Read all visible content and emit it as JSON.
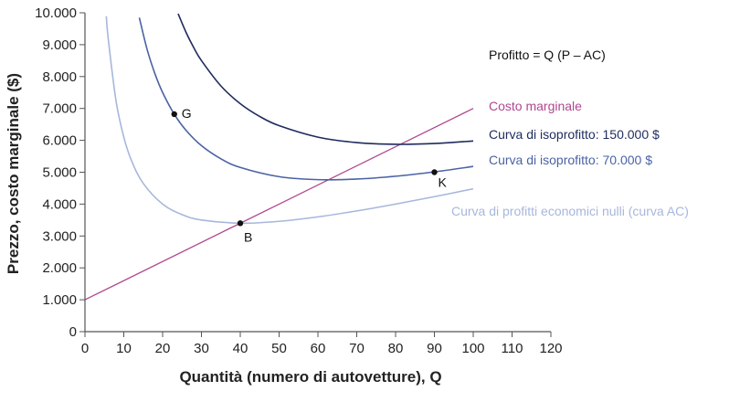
{
  "chart_data": {
    "type": "line",
    "xlabel": "Quantità (numero di autovetture), Q",
    "ylabel": "Prezzo, costo marginale ($)",
    "xlim": [
      0,
      120
    ],
    "ylim": [
      0,
      10000
    ],
    "xticks": [
      "0",
      "10",
      "20",
      "30",
      "40",
      "50",
      "60",
      "70",
      "80",
      "90",
      "100",
      "110",
      "120"
    ],
    "yticks": [
      "0",
      "1.000",
      "2.000",
      "3.000",
      "4.000",
      "5.000",
      "6.000",
      "7.000",
      "8.000",
      "9.000",
      "10.000"
    ],
    "grid": false,
    "annotation": "Profitto = Q (P – AC)",
    "series": [
      {
        "name": "Costo marginale",
        "color": "#b0478f",
        "points": [
          [
            0,
            1000
          ],
          [
            100,
            7000
          ]
        ]
      },
      {
        "name": "Curva di isoprofitto: 150.000 $",
        "color": "#1f2b5e",
        "points": [
          [
            24,
            9970
          ],
          [
            26,
            9395
          ],
          [
            28,
            8911
          ],
          [
            30,
            8500
          ],
          [
            35,
            7707
          ],
          [
            40,
            7150
          ],
          [
            45,
            6750
          ],
          [
            50,
            6460
          ],
          [
            60,
            6100
          ],
          [
            70,
            5929
          ],
          [
            80,
            5875
          ],
          [
            90,
            5900
          ],
          [
            100,
            5980
          ]
        ]
      },
      {
        "name": "Curva di isoprofitto: 70.000 $",
        "color": "#4a63a3",
        "points": [
          [
            14,
            9849
          ],
          [
            16,
            8855
          ],
          [
            18,
            8096
          ],
          [
            20,
            7500
          ],
          [
            23,
            6820
          ],
          [
            26,
            6318
          ],
          [
            30,
            5833
          ],
          [
            35,
            5421
          ],
          [
            40,
            5150
          ],
          [
            50,
            4860
          ],
          [
            60,
            4767
          ],
          [
            70,
            4786
          ],
          [
            80,
            4875
          ],
          [
            90,
            5011
          ],
          [
            100,
            5180
          ]
        ]
      },
      {
        "name": "Curva di profitti economici nulli (curva AC)",
        "color": "#a7b7dc",
        "points": [
          [
            5.5,
            9892
          ],
          [
            6,
            9180
          ],
          [
            8,
            7240
          ],
          [
            10,
            6100
          ],
          [
            12,
            5360
          ],
          [
            15,
            4650
          ],
          [
            20,
            4000
          ],
          [
            25,
            3670
          ],
          [
            30,
            3500
          ],
          [
            40,
            3400
          ],
          [
            50,
            3460
          ],
          [
            60,
            3600
          ],
          [
            70,
            3786
          ],
          [
            80,
            4000
          ],
          [
            90,
            4233
          ],
          [
            100,
            4480
          ]
        ]
      }
    ],
    "marked_points": [
      {
        "label": "G",
        "x": 23,
        "y": 6820
      },
      {
        "label": "B",
        "x": 40,
        "y": 3400
      },
      {
        "label": "K",
        "x": 90,
        "y": 5000
      }
    ]
  }
}
